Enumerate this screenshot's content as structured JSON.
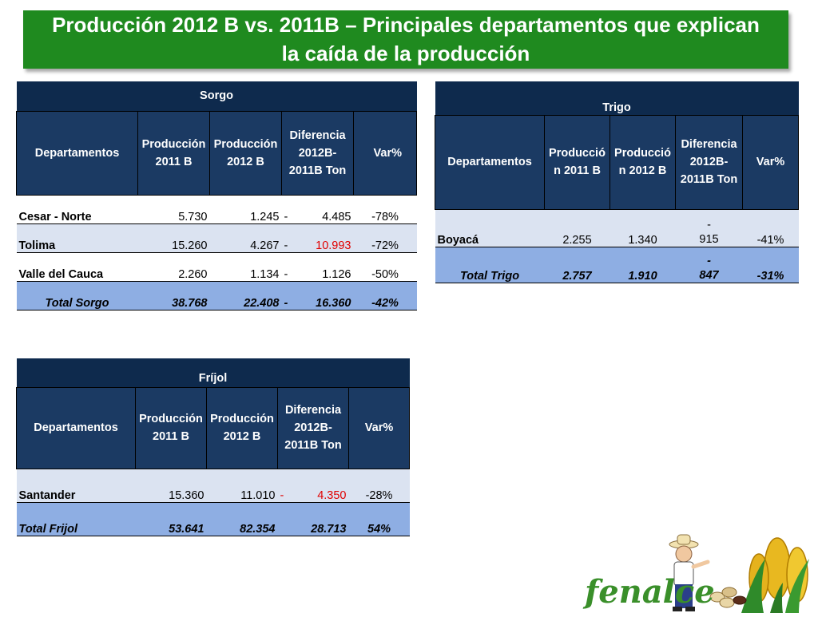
{
  "title": {
    "line1": "Producción 2012 B vs. 2011B – Principales departamentos que explican",
    "line2": "la caída de la producción"
  },
  "sorgo": {
    "caption": "Sorgo",
    "headers": [
      "Departamentos",
      "Producción 2011 B",
      "Producción 2012 B",
      "Diferencia 2012B-2011B Ton",
      "Var%"
    ],
    "rows": [
      {
        "dept": "Cesar - Norte",
        "p2011": "5.730",
        "p2012": "1.245",
        "sign": "-",
        "diff": "4.485",
        "var": "-78%"
      },
      {
        "dept": "Tolima",
        "p2011": "15.260",
        "p2012": "4.267",
        "sign": "-",
        "diff": "10.993",
        "var": "-72%"
      },
      {
        "dept": "Valle del Cauca",
        "p2011": "2.260",
        "p2012": "1.134",
        "sign": "-",
        "diff": "1.126",
        "var": "-50%"
      }
    ],
    "total": {
      "dept": "Total Sorgo",
      "p2011": "38.768",
      "p2012": "22.408",
      "sign": "-",
      "diff": "16.360",
      "var": "-42%"
    }
  },
  "trigo": {
    "caption": "Trigo",
    "headers": [
      "Departamentos",
      "Producció n 2011 B",
      "Producció n 2012 B",
      "Diferencia 2012B-2011B Ton",
      "Var%"
    ],
    "rows": [
      {
        "dept": "Boyacá",
        "p2011": "2.255",
        "p2012": "1.340",
        "sign": "-",
        "diff": "915",
        "var": "-41%"
      }
    ],
    "total": {
      "dept": "Total Trigo",
      "p2011": "2.757",
      "p2012": "1.910",
      "sign": "-",
      "diff": "847",
      "var": "-31%"
    }
  },
  "frijol": {
    "caption": "Fríjol",
    "headers": [
      "Departamentos",
      "Producción 2011 B",
      "Producción 2012 B",
      "Diferencia 2012B-2011B Ton",
      "Var%"
    ],
    "rows": [
      {
        "dept": "Santander",
        "p2011": "15.360",
        "p2012": "11.010",
        "sign": "-",
        "diff": "4.350",
        "var": "-28%"
      }
    ],
    "total": {
      "dept": "Total Frijol",
      "p2011": "53.641",
      "p2012": "82.354",
      "diff": "28.713",
      "var": "54%"
    }
  },
  "logo": {
    "text": "fenalce"
  },
  "colors": {
    "title_bg": "#1f8a1f",
    "header_bg": "#1b3a63",
    "caption_bg": "#0e2a4d",
    "total_bg": "#8eaee3",
    "alt_row": "#dbe3f1",
    "negative": "#e00000"
  }
}
